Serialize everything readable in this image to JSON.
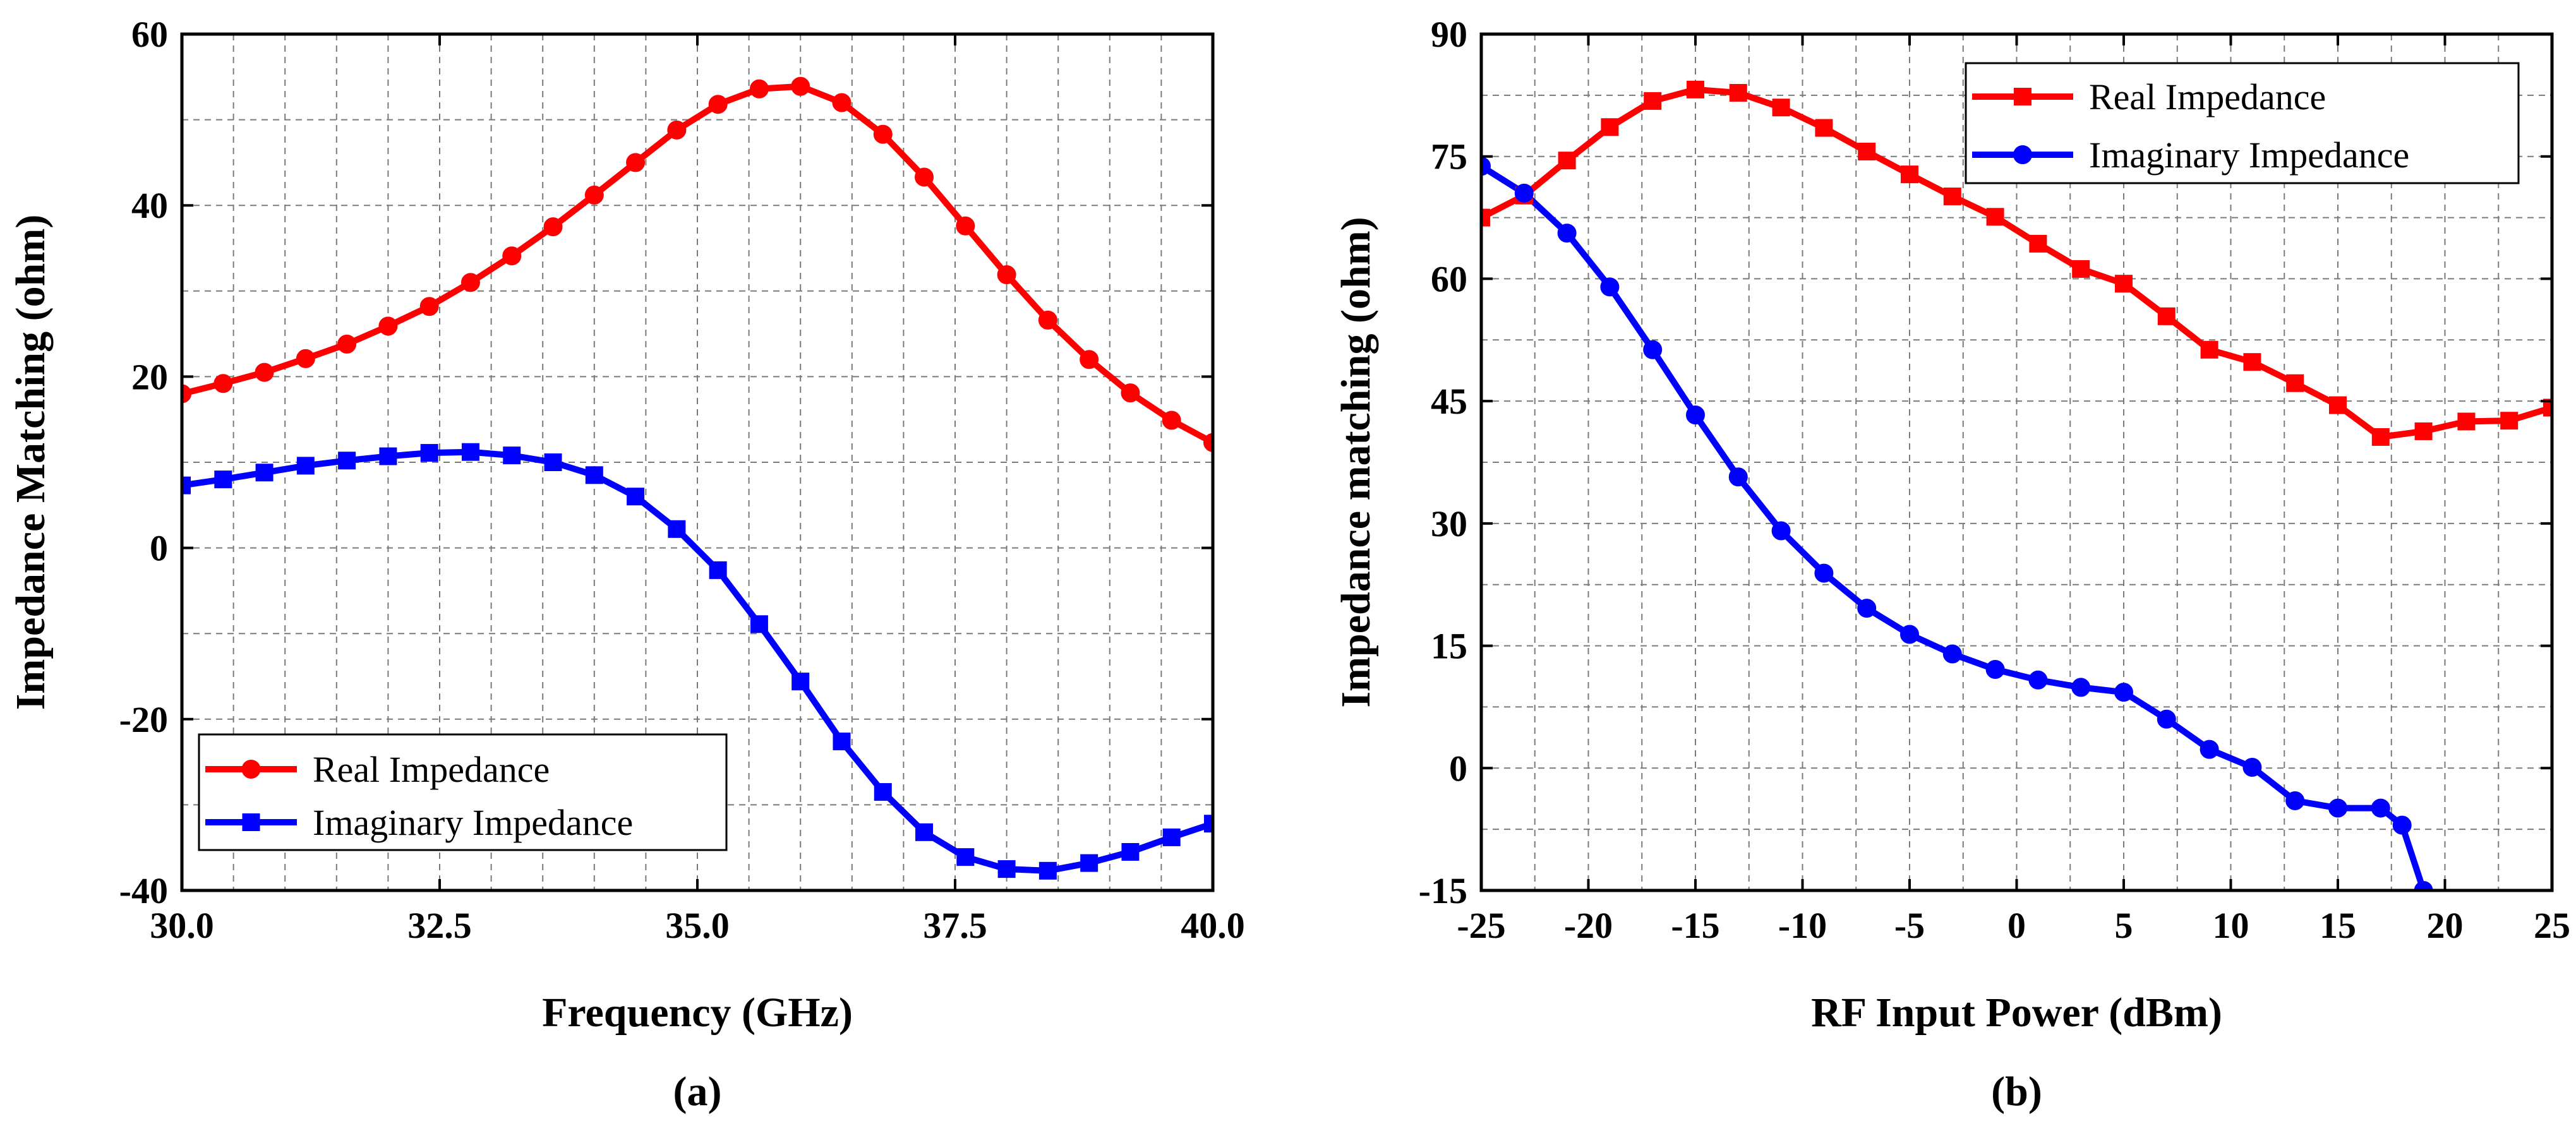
{
  "chart_data": [
    {
      "type": "line",
      "panel_label": "(a)",
      "xlabel": "Frequency (GHz)",
      "ylabel": "Impedance Matching (ohm)",
      "xlim": [
        30,
        40
      ],
      "ylim": [
        -40,
        60
      ],
      "xticks": [
        30.0,
        32.5,
        35.0,
        37.5,
        40.0
      ],
      "xtick_labels": [
        "30.0",
        "32.5",
        "35.0",
        "37.5",
        "40.0"
      ],
      "yticks": [
        -40,
        -20,
        0,
        20,
        40,
        60
      ],
      "ytick_labels": [
        "-40",
        "-20",
        "0",
        "20",
        "40",
        "60"
      ],
      "grid": true,
      "legend_position": "bottom-left",
      "series": [
        {
          "name": "Real Impedance",
          "color": "#ff0000",
          "marker": "circle",
          "x": [
            30.0,
            30.4,
            30.8,
            31.2,
            31.6,
            32.0,
            32.4,
            32.8,
            33.2,
            33.6,
            34.0,
            34.4,
            34.8,
            35.2,
            35.6,
            36.0,
            36.4,
            36.8,
            37.2,
            37.6,
            38.0,
            38.4,
            38.8,
            39.2,
            39.6,
            40.0
          ],
          "y": [
            18.0,
            19.2,
            20.5,
            22.1,
            23.8,
            25.9,
            28.2,
            31.0,
            34.1,
            37.5,
            41.2,
            45.0,
            48.8,
            51.8,
            53.6,
            53.9,
            52.0,
            48.3,
            43.3,
            37.6,
            31.9,
            26.6,
            22.0,
            18.1,
            14.9,
            12.3
          ]
        },
        {
          "name": "Imaginary Impedance",
          "color": "#0000ff",
          "marker": "square",
          "x": [
            30.0,
            30.4,
            30.8,
            31.2,
            31.6,
            32.0,
            32.4,
            32.8,
            33.2,
            33.6,
            34.0,
            34.4,
            34.8,
            35.2,
            35.6,
            36.0,
            36.4,
            36.8,
            37.2,
            37.6,
            38.0,
            38.4,
            38.8,
            39.2,
            39.6,
            40.0
          ],
          "y": [
            7.3,
            8.0,
            8.8,
            9.6,
            10.2,
            10.7,
            11.1,
            11.2,
            10.8,
            10.0,
            8.5,
            6.0,
            2.2,
            -2.6,
            -8.9,
            -15.6,
            -22.6,
            -28.5,
            -33.2,
            -36.1,
            -37.5,
            -37.7,
            -36.8,
            -35.5,
            -33.8,
            -32.2
          ]
        }
      ]
    },
    {
      "type": "line",
      "panel_label": "(b)",
      "xlabel": "RF Input Power (dBm)",
      "ylabel": "Impedance matching (ohm)",
      "xlim": [
        -25,
        25
      ],
      "ylim": [
        -15,
        90
      ],
      "xticks": [
        -25,
        -20,
        -15,
        -10,
        -5,
        0,
        5,
        10,
        15,
        20,
        25
      ],
      "xtick_labels": [
        "-25",
        "-20",
        "-15",
        "-10",
        "-5",
        "0",
        "5",
        "10",
        "15",
        "20",
        "25"
      ],
      "yticks": [
        -15,
        0,
        15,
        30,
        45,
        60,
        75,
        90
      ],
      "ytick_labels": [
        "-15",
        "0",
        "15",
        "30",
        "45",
        "60",
        "75",
        "90"
      ],
      "grid": true,
      "legend_position": "top-right",
      "series": [
        {
          "name": "Real Impedance",
          "color": "#ff0000",
          "marker": "square",
          "x": [
            -25,
            -23,
            -21,
            -19,
            -17,
            -15,
            -13,
            -11,
            -9,
            -7,
            -5,
            -3,
            -1,
            1,
            3,
            5,
            7,
            9,
            11,
            13,
            15,
            17,
            19,
            21,
            23,
            25
          ],
          "y": [
            67.5,
            70.2,
            74.5,
            78.6,
            81.8,
            83.2,
            82.8,
            81.0,
            78.5,
            75.6,
            72.8,
            70.1,
            67.6,
            64.3,
            61.2,
            59.4,
            55.4,
            51.3,
            49.8,
            47.2,
            44.5,
            40.6,
            41.3,
            42.5,
            42.6,
            44.2
          ]
        },
        {
          "name": "Imaginary Impedance",
          "color": "#0000ff",
          "marker": "circle",
          "x": [
            -25,
            -23,
            -21,
            -19,
            -17,
            -15,
            -13,
            -11,
            -9,
            -7,
            -5,
            -3,
            -1,
            1,
            3,
            5,
            7,
            9,
            11,
            13,
            15,
            17,
            18,
            19
          ],
          "y": [
            73.8,
            70.5,
            65.6,
            59.0,
            51.3,
            43.3,
            35.7,
            29.1,
            23.9,
            19.6,
            16.4,
            14.0,
            12.1,
            10.8,
            9.9,
            9.3,
            6.0,
            2.3,
            0.1,
            -4.0,
            -4.9,
            -4.9,
            -7.0,
            -15.0
          ]
        }
      ]
    }
  ]
}
